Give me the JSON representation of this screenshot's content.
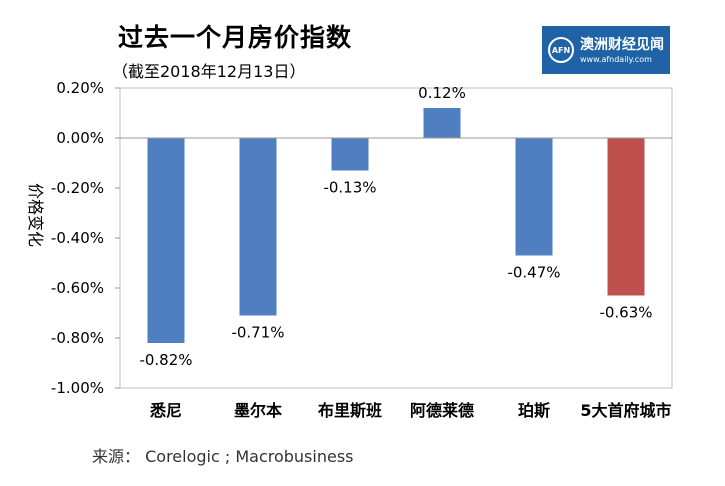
{
  "title": "过去一个月房价指数",
  "subtitle": "（截至2018年12月13日）",
  "logo": {
    "mark": "AFN",
    "name": "澳洲财经见闻",
    "url": "www.afndaily.com"
  },
  "source": {
    "label": "来源：",
    "text": "Corelogic ; Macrobusiness"
  },
  "colors": {
    "bar_default": "#4f7fc1",
    "bar_highlight": "#c0504d",
    "plot_border": "#bfbfbf"
  },
  "chart_data": {
    "type": "bar",
    "categories": [
      "悉尼",
      "墨尔本",
      "布里斯班",
      "阿德莱德",
      "珀斯",
      "5大首府城市"
    ],
    "values": [
      -0.82,
      -0.71,
      -0.13,
      0.12,
      -0.47,
      -0.63
    ],
    "data_labels": [
      "-0.82%",
      "-0.71%",
      "-0.13%",
      "0.12%",
      "-0.47%",
      "-0.63%"
    ],
    "highlight_index": 5,
    "ylabel": "价格变化",
    "ylim": [
      -1.0,
      0.2
    ],
    "yticks": [
      0.2,
      0.0,
      -0.2,
      -0.4,
      -0.6,
      -0.8,
      -1.0
    ],
    "ytick_labels": [
      "0.20%",
      "0.00%",
      "-0.20%",
      "-0.40%",
      "-0.60%",
      "-0.80%",
      "-1.00%"
    ],
    "grid": false,
    "legend": "none"
  }
}
